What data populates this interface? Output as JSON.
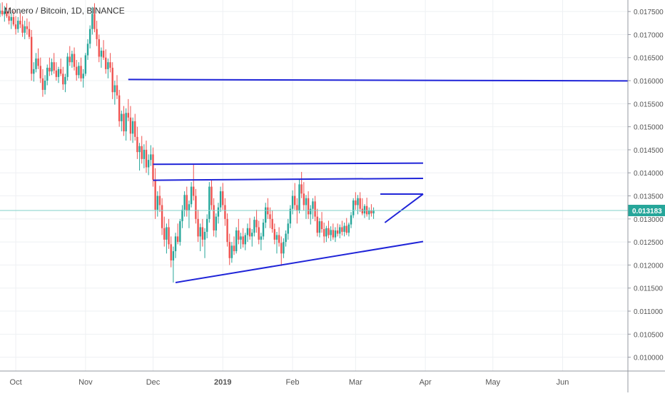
{
  "chart_data": {
    "type": "candlestick",
    "title": "Monero / Bitcoin, 1D, BINANCE",
    "price_label": "0.013183",
    "last_price": 0.013183,
    "y_range": [
      0.0097,
      0.01775
    ],
    "y_ticks": [
      "0.017500",
      "0.017000",
      "0.016500",
      "0.016000",
      "0.015500",
      "0.015000",
      "0.014500",
      "0.014000",
      "0.013500",
      "0.013000",
      "0.012500",
      "0.012000",
      "0.011500",
      "0.011000",
      "0.010500",
      "0.010000"
    ],
    "y_tick_values": [
      0.0175,
      0.017,
      0.0165,
      0.016,
      0.0155,
      0.015,
      0.0145,
      0.014,
      0.0135,
      0.013,
      0.0125,
      0.012,
      0.0115,
      0.011,
      0.0105,
      0.01
    ],
    "x_range": [
      "2018-09-24",
      "2019-06-30"
    ],
    "x_ticks": [
      {
        "label": "Oct",
        "date": "2018-10-01"
      },
      {
        "label": "Nov",
        "date": "2018-11-01"
      },
      {
        "label": "Dec",
        "date": "2018-12-01"
      },
      {
        "label": "2019",
        "date": "2019-01-01"
      },
      {
        "label": "Feb",
        "date": "2019-02-01"
      },
      {
        "label": "Mar",
        "date": "2019-03-01"
      },
      {
        "label": "Apr",
        "date": "2019-04-01"
      },
      {
        "label": "May",
        "date": "2019-05-01"
      },
      {
        "label": "Jun",
        "date": "2019-06-01"
      }
    ],
    "candles_start": "2018-09-24",
    "ohlc": [
      [
        0.01745,
        0.01768,
        0.01738,
        0.01752
      ],
      [
        0.01752,
        0.0177,
        0.0174,
        0.01744
      ],
      [
        0.01744,
        0.01762,
        0.01728,
        0.0175
      ],
      [
        0.0175,
        0.01768,
        0.01736,
        0.0174
      ],
      [
        0.0174,
        0.01758,
        0.01722,
        0.0173
      ],
      [
        0.0173,
        0.01748,
        0.01712,
        0.01738
      ],
      [
        0.01738,
        0.01752,
        0.01718,
        0.01722
      ],
      [
        0.01722,
        0.0174,
        0.017,
        0.01712
      ],
      [
        0.01712,
        0.01738,
        0.01704,
        0.0173
      ],
      [
        0.0173,
        0.01748,
        0.01714,
        0.01722
      ],
      [
        0.01722,
        0.0174,
        0.01695,
        0.01704
      ],
      [
        0.01704,
        0.0173,
        0.0169,
        0.01718
      ],
      [
        0.01718,
        0.01735,
        0.017,
        0.01712
      ],
      [
        0.01712,
        0.01728,
        0.0169,
        0.01695
      ],
      [
        0.01695,
        0.0171,
        0.016,
        0.01615
      ],
      [
        0.01615,
        0.0164,
        0.01598,
        0.01625
      ],
      [
        0.01625,
        0.0166,
        0.01618,
        0.01648
      ],
      [
        0.01648,
        0.0167,
        0.01625,
        0.01632
      ],
      [
        0.01632,
        0.0165,
        0.01595,
        0.01605
      ],
      [
        0.01605,
        0.01625,
        0.01565,
        0.0158
      ],
      [
        0.0158,
        0.01612,
        0.0157,
        0.016
      ],
      [
        0.016,
        0.01635,
        0.0159,
        0.01628
      ],
      [
        0.01628,
        0.0165,
        0.0161,
        0.0162
      ],
      [
        0.0162,
        0.01648,
        0.01612,
        0.0164
      ],
      [
        0.0164,
        0.0166,
        0.01615,
        0.01622
      ],
      [
        0.01622,
        0.0164,
        0.016,
        0.01608
      ],
      [
        0.01608,
        0.0163,
        0.01595,
        0.01625
      ],
      [
        0.01625,
        0.01648,
        0.0161,
        0.01615
      ],
      [
        0.01615,
        0.0163,
        0.0158,
        0.01592
      ],
      [
        0.01592,
        0.01615,
        0.01575,
        0.01608
      ],
      [
        0.01608,
        0.0166,
        0.016,
        0.01652
      ],
      [
        0.01652,
        0.01675,
        0.01632,
        0.0164
      ],
      [
        0.0164,
        0.01665,
        0.01628,
        0.01658
      ],
      [
        0.01658,
        0.01672,
        0.01622,
        0.0163
      ],
      [
        0.0163,
        0.01645,
        0.016,
        0.01612
      ],
      [
        0.01612,
        0.0164,
        0.01605,
        0.01632
      ],
      [
        0.01632,
        0.0165,
        0.01598,
        0.01605
      ],
      [
        0.01605,
        0.01625,
        0.01585,
        0.01615
      ],
      [
        0.01615,
        0.0166,
        0.0161,
        0.01655
      ],
      [
        0.01655,
        0.0169,
        0.01645,
        0.0168
      ],
      [
        0.0168,
        0.0172,
        0.0167,
        0.01712
      ],
      [
        0.01712,
        0.0176,
        0.017,
        0.01745
      ],
      [
        0.01745,
        0.01768,
        0.01705,
        0.01712
      ],
      [
        0.01712,
        0.0173,
        0.01675,
        0.0169
      ],
      [
        0.0169,
        0.017,
        0.0164,
        0.01652
      ],
      [
        0.01652,
        0.01672,
        0.01628,
        0.01665
      ],
      [
        0.01665,
        0.01688,
        0.01645,
        0.0165
      ],
      [
        0.0165,
        0.01668,
        0.01615,
        0.01625
      ],
      [
        0.01625,
        0.01648,
        0.01605,
        0.0164
      ],
      [
        0.0164,
        0.0166,
        0.01618,
        0.01628
      ],
      [
        0.01628,
        0.0164,
        0.0156,
        0.01575
      ],
      [
        0.01575,
        0.016,
        0.01548,
        0.0159
      ],
      [
        0.0159,
        0.01612,
        0.0156,
        0.01568
      ],
      [
        0.01568,
        0.0158,
        0.015,
        0.01512
      ],
      [
        0.01512,
        0.01535,
        0.0149,
        0.01528
      ],
      [
        0.01528,
        0.01545,
        0.0148,
        0.0149
      ],
      [
        0.0149,
        0.0154,
        0.0147,
        0.0153
      ],
      [
        0.0153,
        0.0156,
        0.01512,
        0.0152
      ],
      [
        0.0152,
        0.01545,
        0.0147,
        0.01485
      ],
      [
        0.01485,
        0.0152,
        0.01465,
        0.01512
      ],
      [
        0.01512,
        0.01528,
        0.0147,
        0.01478
      ],
      [
        0.01478,
        0.015,
        0.0143,
        0.01445
      ],
      [
        0.01445,
        0.01465,
        0.01405,
        0.01458
      ],
      [
        0.01458,
        0.0148,
        0.0142,
        0.0143
      ],
      [
        0.0143,
        0.01462,
        0.0141,
        0.0145
      ],
      [
        0.0145,
        0.0147,
        0.014,
        0.01412
      ],
      [
        0.01412,
        0.0144,
        0.01395,
        0.01428
      ],
      [
        0.01428,
        0.0146,
        0.01415,
        0.0144
      ],
      [
        0.0144,
        0.01455,
        0.0137,
        0.01385
      ],
      [
        0.01385,
        0.0141,
        0.013,
        0.0132
      ],
      [
        0.0132,
        0.0136,
        0.01305,
        0.0135
      ],
      [
        0.0135,
        0.01372,
        0.01315,
        0.0133
      ],
      [
        0.0133,
        0.01345,
        0.01265,
        0.0128
      ],
      [
        0.0128,
        0.01305,
        0.0124,
        0.01255
      ],
      [
        0.01255,
        0.0129,
        0.01225,
        0.01282
      ],
      [
        0.01282,
        0.013,
        0.01235,
        0.01245
      ],
      [
        0.01245,
        0.01262,
        0.01195,
        0.0121
      ],
      [
        0.0121,
        0.0124,
        0.01162,
        0.0123
      ],
      [
        0.0123,
        0.0127,
        0.01215,
        0.01262
      ],
      [
        0.01262,
        0.0129,
        0.01245,
        0.0125
      ],
      [
        0.0125,
        0.013,
        0.01242,
        0.01295
      ],
      [
        0.01295,
        0.0133,
        0.0128,
        0.0132
      ],
      [
        0.0132,
        0.0136,
        0.01305,
        0.01352
      ],
      [
        0.01352,
        0.0137,
        0.01305,
        0.01318
      ],
      [
        0.01318,
        0.0134,
        0.0128,
        0.01332
      ],
      [
        0.01332,
        0.0138,
        0.01325,
        0.0137
      ],
      [
        0.0137,
        0.0142,
        0.0134,
        0.0135
      ],
      [
        0.0135,
        0.01365,
        0.0129,
        0.013
      ],
      [
        0.013,
        0.0132,
        0.0125,
        0.01262
      ],
      [
        0.01262,
        0.0129,
        0.0123,
        0.01282
      ],
      [
        0.01282,
        0.013,
        0.0124,
        0.01255
      ],
      [
        0.01255,
        0.0128,
        0.01215,
        0.01272
      ],
      [
        0.01272,
        0.0131,
        0.01258,
        0.013
      ],
      [
        0.013,
        0.0138,
        0.01292,
        0.0137
      ],
      [
        0.0137,
        0.01385,
        0.0132,
        0.0133
      ],
      [
        0.0133,
        0.01345,
        0.01262,
        0.01275
      ],
      [
        0.01275,
        0.01312,
        0.0126,
        0.01305
      ],
      [
        0.01305,
        0.01335,
        0.0129,
        0.01325
      ],
      [
        0.01325,
        0.0137,
        0.01315,
        0.0136
      ],
      [
        0.0136,
        0.01378,
        0.0132,
        0.0133
      ],
      [
        0.0133,
        0.01345,
        0.01285,
        0.013
      ],
      [
        0.013,
        0.01312,
        0.0124,
        0.0125
      ],
      [
        0.0125,
        0.01268,
        0.012,
        0.01215
      ],
      [
        0.01215,
        0.0125,
        0.01205,
        0.01242
      ],
      [
        0.01242,
        0.01262,
        0.01222,
        0.0123
      ],
      [
        0.0123,
        0.01282,
        0.01225,
        0.01275
      ],
      [
        0.01275,
        0.013,
        0.01245,
        0.01255
      ],
      [
        0.01255,
        0.0127,
        0.01235,
        0.01262
      ],
      [
        0.01262,
        0.0128,
        0.01238,
        0.01245
      ],
      [
        0.01245,
        0.0127,
        0.01232,
        0.01265
      ],
      [
        0.01265,
        0.0129,
        0.0125,
        0.0128
      ],
      [
        0.0128,
        0.01302,
        0.01255,
        0.01262
      ],
      [
        0.01262,
        0.01278,
        0.0124,
        0.0127
      ],
      [
        0.0127,
        0.01305,
        0.01262,
        0.01298
      ],
      [
        0.01298,
        0.0132,
        0.0127,
        0.01282
      ],
      [
        0.01282,
        0.01296,
        0.01245,
        0.01255
      ],
      [
        0.01255,
        0.0127,
        0.01232,
        0.01262
      ],
      [
        0.01262,
        0.013,
        0.01255,
        0.01292
      ],
      [
        0.01292,
        0.01335,
        0.0128,
        0.01325
      ],
      [
        0.01325,
        0.01345,
        0.013,
        0.0131
      ],
      [
        0.0131,
        0.01325,
        0.0128,
        0.013
      ],
      [
        0.013,
        0.01318,
        0.0127,
        0.01278
      ],
      [
        0.01278,
        0.0129,
        0.01245,
        0.01255
      ],
      [
        0.01255,
        0.01272,
        0.01225,
        0.01265
      ],
      [
        0.01265,
        0.01282,
        0.0124,
        0.01248
      ],
      [
        0.01248,
        0.01262,
        0.01198,
        0.01225
      ],
      [
        0.01225,
        0.01258,
        0.01215,
        0.0125
      ],
      [
        0.0125,
        0.01275,
        0.0124,
        0.01268
      ],
      [
        0.01268,
        0.013,
        0.01255,
        0.0129
      ],
      [
        0.0129,
        0.0133,
        0.0128,
        0.01322
      ],
      [
        0.01322,
        0.01362,
        0.0131,
        0.0135
      ],
      [
        0.0135,
        0.01378,
        0.0132,
        0.0133
      ],
      [
        0.0133,
        0.01345,
        0.0129,
        0.01318
      ],
      [
        0.01318,
        0.01385,
        0.01312,
        0.01375
      ],
      [
        0.01375,
        0.01402,
        0.01345,
        0.01355
      ],
      [
        0.01355,
        0.0138,
        0.01318,
        0.0133
      ],
      [
        0.0133,
        0.01352,
        0.013,
        0.01345
      ],
      [
        0.01345,
        0.0136,
        0.013,
        0.0131
      ],
      [
        0.0131,
        0.0133,
        0.01288,
        0.01322
      ],
      [
        0.01322,
        0.01345,
        0.013,
        0.01338
      ],
      [
        0.01338,
        0.0135,
        0.01295,
        0.01305
      ],
      [
        0.01305,
        0.01322,
        0.01262,
        0.0127
      ],
      [
        0.0127,
        0.01302,
        0.0126,
        0.01295
      ],
      [
        0.01295,
        0.01315,
        0.0127,
        0.01278
      ],
      [
        0.01278,
        0.01292,
        0.01248,
        0.01262
      ],
      [
        0.01262,
        0.01285,
        0.0125,
        0.0128
      ],
      [
        0.0128,
        0.01296,
        0.01258,
        0.01265
      ],
      [
        0.01265,
        0.01284,
        0.01252,
        0.01276
      ],
      [
        0.01276,
        0.0129,
        0.01255,
        0.0126
      ],
      [
        0.0126,
        0.01282,
        0.0125,
        0.01275
      ],
      [
        0.01275,
        0.0129,
        0.01262,
        0.01268
      ],
      [
        0.01268,
        0.01288,
        0.01258,
        0.01282
      ],
      [
        0.01282,
        0.01296,
        0.01264,
        0.01272
      ],
      [
        0.01272,
        0.01292,
        0.01262,
        0.01285
      ],
      [
        0.01285,
        0.01302,
        0.01265,
        0.0127
      ],
      [
        0.0127,
        0.01292,
        0.01262,
        0.01288
      ],
      [
        0.01288,
        0.01315,
        0.0128,
        0.01308
      ],
      [
        0.01308,
        0.01345,
        0.01302,
        0.0134
      ],
      [
        0.0134,
        0.01358,
        0.0132,
        0.0133
      ],
      [
        0.0133,
        0.01352,
        0.0131,
        0.01345
      ],
      [
        0.01345,
        0.01358,
        0.01315,
        0.01322
      ],
      [
        0.01322,
        0.01345,
        0.01308,
        0.01312
      ],
      [
        0.01312,
        0.01332,
        0.01302,
        0.01328
      ],
      [
        0.01328,
        0.01346,
        0.01305,
        0.0131
      ],
      [
        0.0131,
        0.01325,
        0.01298,
        0.01318
      ],
      [
        0.01318,
        0.01332,
        0.01305,
        0.01312
      ],
      [
        0.01312,
        0.01325,
        0.013,
        0.01318
      ]
    ],
    "trendlines": [
      {
        "from": [
          "2018-11-20",
          0.016025
        ],
        "to": [
          "2019-06-30",
          0.015995
        ]
      },
      {
        "from": [
          "2018-12-01",
          0.014185
        ],
        "to": [
          "2019-03-31",
          0.01421
        ]
      },
      {
        "from": [
          "2018-12-01",
          0.01384
        ],
        "to": [
          "2019-03-31",
          0.01388
        ]
      },
      {
        "from": [
          "2018-12-11",
          0.01162
        ],
        "to": [
          "2019-03-31",
          0.01251
        ]
      },
      {
        "from": [
          "2019-03-12",
          0.01354
        ],
        "to": [
          "2019-03-31",
          0.01354
        ]
      },
      {
        "from": [
          "2019-03-14",
          0.01292
        ],
        "to": [
          "2019-03-31",
          0.01354
        ]
      }
    ]
  }
}
